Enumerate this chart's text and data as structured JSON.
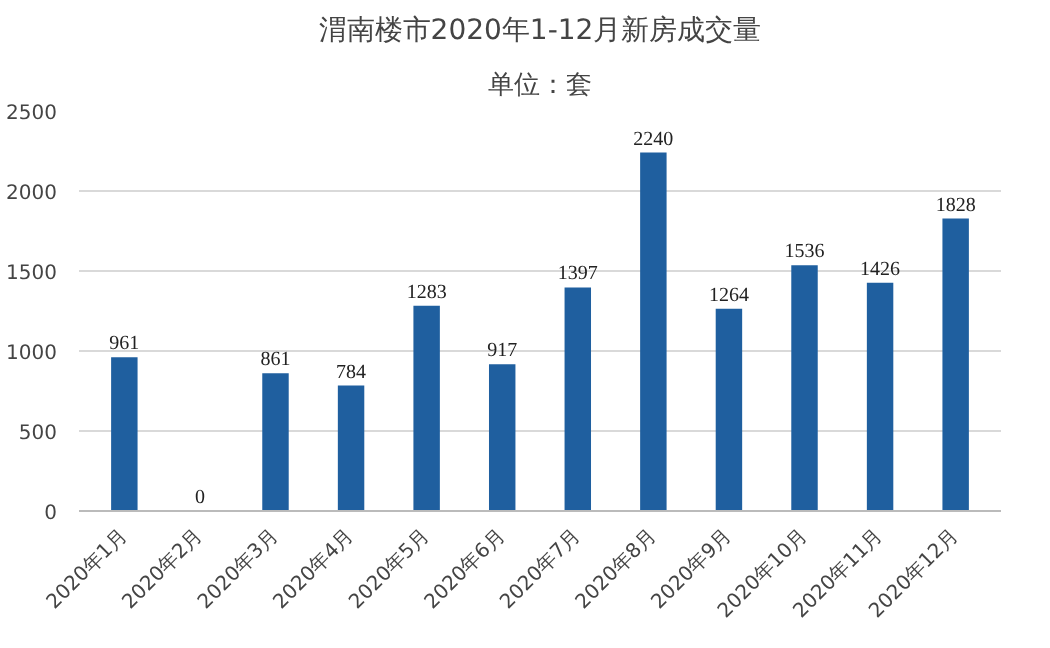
{
  "chart_data": {
    "type": "bar",
    "title": "渭南楼市2020年1-12月新房成交量",
    "subtitle": "单位：套",
    "categories": [
      "2020年1月",
      "2020年2月",
      "2020年3月",
      "2020年4月",
      "2020年5月",
      "2020年6月",
      "2020年7月",
      "2020年8月",
      "2020年9月",
      "2020年10月",
      "2020年11月",
      "2020年12月"
    ],
    "values": [
      961,
      0,
      861,
      784,
      1283,
      917,
      1397,
      2240,
      1264,
      1536,
      1426,
      1828
    ],
    "color": "#1f5f9f",
    "ylim": [
      0,
      2500
    ],
    "yticks": [
      0,
      500,
      1000,
      1500,
      2000,
      2500
    ],
    "grid": "y",
    "data_labels": true
  }
}
